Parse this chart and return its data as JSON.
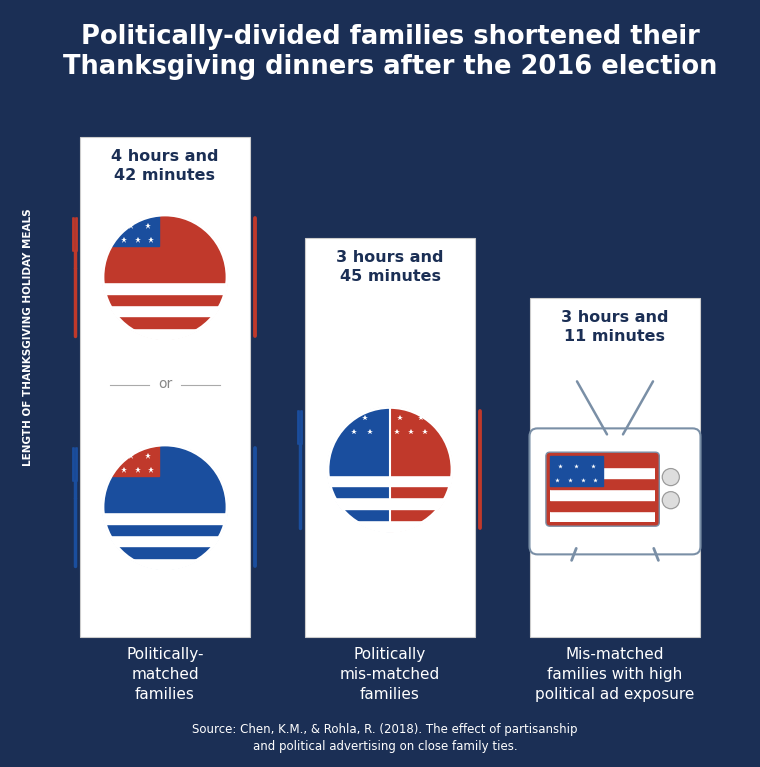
{
  "background_color": "#1b2f55",
  "title_line1": "Politically-divided families shortened their",
  "title_line2": "Thanksgiving dinners after the 2016 election",
  "title_color": "#ffffff",
  "title_fontsize": 18,
  "ylabel": "LENGTH OF THANKSGIVING HOLIDAY MEALS",
  "ylabel_color": "#ffffff",
  "bar_values_minutes": [
    282,
    225,
    191
  ],
  "bar_labels_top": [
    "4 hours and\n42 minutes",
    "3 hours and\n45 minutes",
    "3 hours and\n11 minutes"
  ],
  "bar_categories": [
    "Politically-\nmatched\nfamilies",
    "Politically\nmis-matched\nfamilies",
    "Mis-matched\nfamilies with high\npolitical ad exposure"
  ],
  "source_text": "Source: Chen, K.M., & Rohla, R. (2018). The effect of partisanship\nand political advertising on close family ties.",
  "source_color": "#ffffff",
  "red_color": "#c0392b",
  "blue_color": "#1a4e9e",
  "white_color": "#ffffff",
  "dark_navy": "#1b2f55",
  "label_color": "#1b2f55",
  "bar_edge_color": "#cccccc",
  "or_line_color": "#aaaaaa",
  "or_text_color": "#888888",
  "tv_body_color": "#ffffff",
  "tv_edge_color": "#7a8fa6",
  "btn_color": "#dddddd",
  "btn_edge_color": "#999999",
  "ant_color": "#7a8fa6"
}
